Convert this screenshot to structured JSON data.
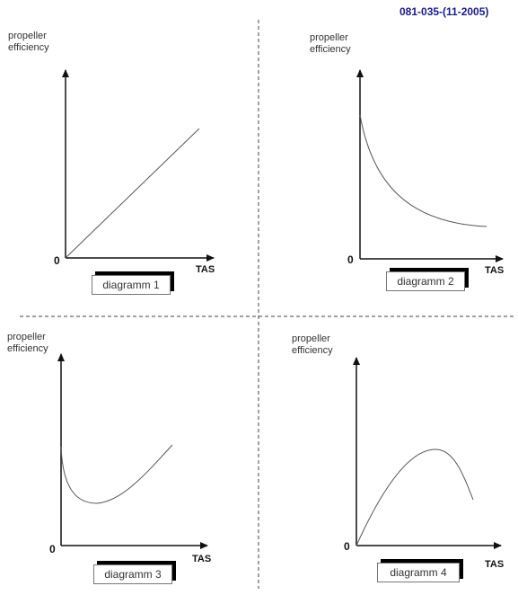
{
  "reference_code": "081-035-(11-2005)",
  "reference_color": "#1a1a8c",
  "curve_color": "#555555",
  "axis_color": "#111111",
  "divider_color": "#444444",
  "diagrams": [
    {
      "caption": "diagramm 1",
      "ylabel": "propeller\nefficiency",
      "xlabel": "TAS",
      "origin": "0",
      "shape": "straight line rising from origin"
    },
    {
      "caption": "diagramm 2",
      "ylabel": "propeller\nefficiency",
      "xlabel": "TAS",
      "origin": "0",
      "shape": "starts high, decreases and levels off"
    },
    {
      "caption": "diagramm 3",
      "ylabel": "propeller\nefficiency",
      "xlabel": "TAS",
      "origin": "0",
      "shape": "decreases to a minimum then increases"
    },
    {
      "caption": "diagramm 4",
      "ylabel": "propeller\nefficiency",
      "xlabel": "TAS",
      "origin": "0",
      "shape": "rises from origin to a maximum then decreases"
    }
  ]
}
